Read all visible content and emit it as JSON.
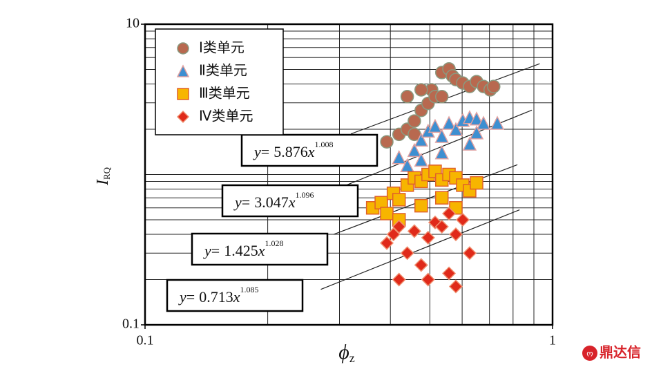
{
  "chart_data": {
    "type": "scatter",
    "xlabel": "ϕ",
    "xlabel_sub": "z",
    "ylabel": "I",
    "ylabel_sub": "RQ",
    "xscale": "log",
    "yscale": "log",
    "xlim": [
      0.1,
      1
    ],
    "ylim": [
      0.1,
      10
    ],
    "xticks": [
      0.1,
      1
    ],
    "yticks": [
      0.1,
      10
    ],
    "xminor_ticks": [
      0.2,
      0.3,
      0.4,
      0.5,
      0.6,
      0.7,
      0.8,
      0.9
    ],
    "yminor_ticks": [
      0.2,
      0.3,
      0.4,
      0.5,
      0.6,
      0.7,
      0.8,
      0.9,
      1,
      2,
      3,
      4,
      5,
      6,
      7,
      8,
      9
    ],
    "grid": true,
    "legend": "upper left",
    "series": [
      {
        "name": "Ⅰ类单元",
        "marker": "circle",
        "color": "#b8694f",
        "edge": "#8a9a80",
        "x": [
          0.392,
          0.42,
          0.44,
          0.458,
          0.476,
          0.495,
          0.505,
          0.515,
          0.535,
          0.557,
          0.568,
          0.579,
          0.602,
          0.626,
          0.651,
          0.677,
          0.703,
          0.717,
          0.476,
          0.44,
          0.535,
          0.458
        ],
        "values": [
          1.65,
          1.85,
          2.0,
          2.27,
          2.67,
          2.97,
          3.66,
          3.3,
          4.77,
          5.04,
          4.52,
          4.28,
          4.06,
          3.85,
          4.15,
          3.85,
          3.66,
          3.85,
          3.66,
          3.3,
          3.3,
          1.85
        ]
      },
      {
        "name": "Ⅱ类单元",
        "marker": "triangle",
        "color": "#3d8fd1",
        "edge": "#e0a0a0",
        "x": [
          0.42,
          0.44,
          0.458,
          0.476,
          0.495,
          0.515,
          0.535,
          0.557,
          0.579,
          0.602,
          0.626,
          0.651,
          0.677,
          0.732,
          0.626,
          0.535,
          0.476,
          0.651
        ],
        "values": [
          1.3,
          1.15,
          1.45,
          1.7,
          1.95,
          2.1,
          1.8,
          2.2,
          2.0,
          2.3,
          2.4,
          2.35,
          2.2,
          2.2,
          1.6,
          1.4,
          1.25,
          1.9
        ]
      },
      {
        "name": "Ⅲ类单元",
        "marker": "square",
        "color": "#f7b500",
        "edge": "#e0602a",
        "x": [
          0.362,
          0.38,
          0.392,
          0.407,
          0.42,
          0.44,
          0.458,
          0.476,
          0.495,
          0.515,
          0.535,
          0.557,
          0.579,
          0.602,
          0.626,
          0.651,
          0.476,
          0.535,
          0.42,
          0.579
        ],
        "values": [
          0.6,
          0.65,
          0.55,
          0.75,
          0.68,
          0.85,
          0.95,
          0.9,
          1.0,
          1.05,
          0.92,
          1.0,
          0.95,
          0.85,
          0.78,
          0.88,
          0.62,
          0.7,
          0.5,
          0.6
        ]
      },
      {
        "name": "Ⅳ类单元",
        "marker": "diamond",
        "color": "#e02a1a",
        "edge": "#f09070",
        "x": [
          0.392,
          0.407,
          0.42,
          0.44,
          0.458,
          0.476,
          0.495,
          0.515,
          0.535,
          0.557,
          0.579,
          0.602,
          0.626,
          0.557,
          0.495,
          0.42,
          0.579
        ],
        "values": [
          0.35,
          0.4,
          0.2,
          0.3,
          0.42,
          0.25,
          0.38,
          0.48,
          0.45,
          0.22,
          0.4,
          0.5,
          0.3,
          0.55,
          0.2,
          0.45,
          0.18
        ]
      }
    ],
    "fit_lhs": "y",
    "fit_eq": "=",
    "fit_var": "x",
    "fits": [
      {
        "a": 5.876,
        "b": 1.008,
        "x_range": [
          0.32,
          0.93
        ]
      },
      {
        "a": 3.047,
        "b": 1.096,
        "x_range": [
          0.29,
          0.89
        ]
      },
      {
        "a": 1.425,
        "b": 1.028,
        "x_range": [
          0.29,
          0.82
        ]
      },
      {
        "a": 0.713,
        "b": 1.085,
        "x_range": [
          0.27,
          0.83
        ]
      }
    ],
    "watermark": "鼎达信"
  }
}
